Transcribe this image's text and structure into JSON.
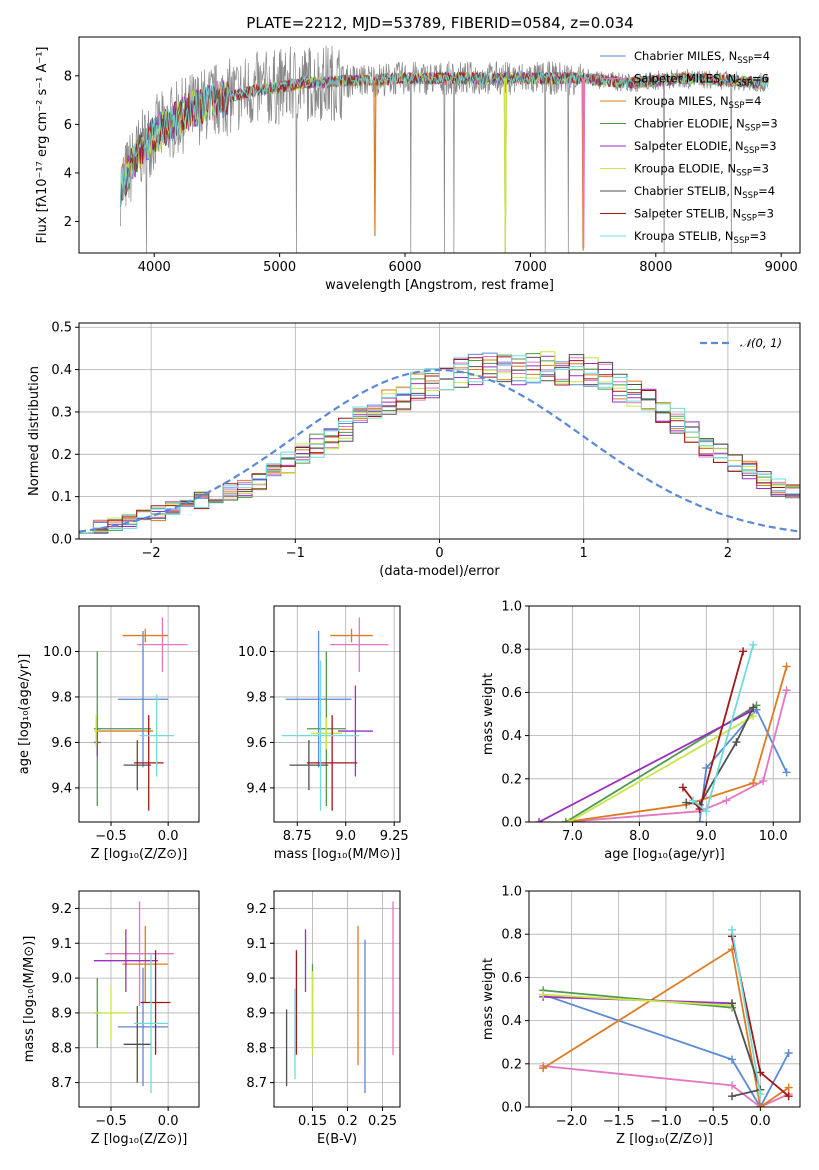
{
  "figure_title": "PLATE=2212, MJD=53789, FIBERID=0584, z=0.034",
  "colors": {
    "Chabrier MILES": "#5b8ad6",
    "Salpeter MILES": "#e377c2",
    "Kroupa MILES": "#dd7b22",
    "Chabrier ELODIE": "#4f9a4f",
    "Salpeter ELODIE": "#9b30c0",
    "Kroupa ELODIE": "#c8e64a",
    "Chabrier STELIB": "#505050",
    "Salpeter STELIB": "#a01818",
    "Kroupa STELIB": "#6fdcdc",
    "data": "#888888",
    "gaussian": "#5b8ad6"
  },
  "chart_data": [
    {
      "id": "spectrum",
      "type": "line",
      "title": "PLATE=2212, MJD=53789, FIBERID=0584, z=0.034",
      "xlabel": "wavelength [Angstrom, rest frame]",
      "ylabel": "Flux [fλ10⁻¹⁷ erg cm⁻² s⁻¹ A⁻¹]",
      "xlim": [
        3400,
        9150
      ],
      "ylim": [
        0.7,
        9.6
      ],
      "xticks": [
        4000,
        5000,
        6000,
        7000,
        8000,
        9000
      ],
      "yticks": [
        2,
        4,
        6,
        8
      ],
      "legend": [
        {
          "name": "Chabrier MILES",
          "nssp": "4"
        },
        {
          "name": "Salpeter MILES",
          "nssp": "6"
        },
        {
          "name": "Kroupa MILES",
          "nssp": "4"
        },
        {
          "name": "Chabrier ELODIE",
          "nssp": "3"
        },
        {
          "name": "Salpeter ELODIE",
          "nssp": "3"
        },
        {
          "name": "Kroupa ELODIE",
          "nssp": "3"
        },
        {
          "name": "Chabrier STELIB",
          "nssp": "4"
        },
        {
          "name": "Salpeter STELIB",
          "nssp": "3"
        },
        {
          "name": "Kroupa STELIB",
          "nssp": "3"
        }
      ],
      "legend_placement": "upper-right",
      "continuum": [
        [
          3730,
          3.4
        ],
        [
          3800,
          4.1
        ],
        [
          3900,
          5.0
        ],
        [
          4000,
          5.6
        ],
        [
          4150,
          6.1
        ],
        [
          4300,
          6.6
        ],
        [
          4500,
          7.0
        ],
        [
          4800,
          7.4
        ],
        [
          5200,
          7.7
        ],
        [
          5600,
          7.8
        ],
        [
          6000,
          7.9
        ],
        [
          6500,
          7.9
        ],
        [
          7000,
          7.9
        ],
        [
          7430,
          7.9
        ]
      ],
      "continuum_red": [
        [
          7400,
          7.8
        ],
        [
          7800,
          7.7
        ],
        [
          8200,
          7.9
        ],
        [
          8600,
          7.8
        ],
        [
          8900,
          7.7
        ]
      ],
      "model_dips": [
        {
          "series": "Kroupa MILES",
          "x": 5760,
          "y": 1.4
        },
        {
          "series": "Kroupa MILES",
          "x": 6800,
          "y": 0.7
        },
        {
          "series": "Kroupa MILES",
          "x": 7420,
          "y": 0.8
        },
        {
          "series": "Salpeter MILES",
          "x": 7425,
          "y": 0.9
        },
        {
          "series": "Kroupa ELODIE",
          "x": 6800,
          "y": 0.7
        }
      ]
    },
    {
      "id": "residuals",
      "type": "histogram",
      "xlabel": "(data-model)/error",
      "ylabel": "Normed distribution",
      "xlim": [
        -2.5,
        2.5
      ],
      "ylim": [
        0,
        0.51
      ],
      "xticks": [
        -2,
        -1,
        0,
        1,
        2
      ],
      "yticks": [
        0.0,
        0.1,
        0.2,
        0.3,
        0.4,
        0.5
      ],
      "grid": true,
      "legend": "𝒩(0, 1)",
      "legend_placement": "upper-right",
      "bin_width": 0.1,
      "bin_start": -2.5,
      "envelope": [
        0.03,
        0.03,
        0.035,
        0.04,
        0.05,
        0.06,
        0.07,
        0.08,
        0.09,
        0.1,
        0.11,
        0.12,
        0.14,
        0.16,
        0.18,
        0.2,
        0.22,
        0.24,
        0.26,
        0.28,
        0.3,
        0.32,
        0.34,
        0.36,
        0.37,
        0.38,
        0.39,
        0.4,
        0.4,
        0.41,
        0.4,
        0.4,
        0.41,
        0.4,
        0.4,
        0.39,
        0.38,
        0.36,
        0.34,
        0.32,
        0.3,
        0.28,
        0.25,
        0.22,
        0.2,
        0.18,
        0.16,
        0.14,
        0.12,
        0.11,
        0.1,
        0.09,
        0.08,
        0.07,
        0.06,
        0.05,
        0.04,
        0.035,
        0.03,
        0.025,
        0.02,
        0.02
      ]
    },
    {
      "id": "age-vs-Z",
      "type": "scatter",
      "xlabel": "Z [log₁₀(Z/Z⊙)]",
      "ylabel": "age  [log₁₀(age/yr)]",
      "xlim": [
        -0.78,
        0.27
      ],
      "ylim": [
        9.25,
        10.2
      ],
      "xticks": [
        -0.5,
        0.0
      ],
      "yticks": [
        9.4,
        9.6,
        9.8,
        10.0
      ],
      "grid": true,
      "points": [
        {
          "series": "Chabrier MILES",
          "x": -0.22,
          "y": 9.79,
          "xerr": 0.22,
          "yerr": 0.3
        },
        {
          "series": "Salpeter MILES",
          "x": -0.05,
          "y": 10.03,
          "xerr": 0.22,
          "yerr": 0.12
        },
        {
          "series": "Kroupa MILES",
          "x": -0.2,
          "y": 10.07,
          "xerr": 0.2,
          "yerr": 0.03
        },
        {
          "series": "Chabrier ELODIE",
          "x": -0.62,
          "y": 9.66,
          "xerr": 0.03,
          "yerr": 0.34
        },
        {
          "series": "Salpeter ELODIE",
          "x": -0.62,
          "y": 9.6,
          "xerr": 0.03,
          "yerr": 0.06
        },
        {
          "series": "Kroupa ELODIE",
          "x": -0.63,
          "y": 9.65,
          "xerr": 0.02,
          "yerr": 0.07
        },
        {
          "series": "Chabrier STELIB",
          "x": -0.27,
          "y": 9.5,
          "xerr": 0.12,
          "yerr": 0.11
        },
        {
          "series": "Salpeter STELIB",
          "x": -0.17,
          "y": 9.51,
          "xerr": 0.13,
          "yerr": 0.21
        },
        {
          "series": "Kroupa STELIB",
          "x": -0.1,
          "y": 9.63,
          "xerr": 0.15,
          "yerr": 0.18
        }
      ],
      "hlines": [
        {
          "series": "Chabrier ELODIE",
          "y": 9.66,
          "x0": -0.62,
          "x1": -0.15
        },
        {
          "series": "Kroupa MILES",
          "y": 9.65,
          "x0": -0.62,
          "x1": -0.13
        }
      ]
    },
    {
      "id": "age-vs-mass",
      "type": "scatter",
      "xlabel": "mass [log₁₀(M/M⊙)]",
      "ylabel": "",
      "xlim": [
        8.63,
        9.28
      ],
      "ylim": [
        9.25,
        10.2
      ],
      "xticks": [
        8.75,
        9.0,
        9.25
      ],
      "yticks": [
        9.4,
        9.6,
        9.8,
        10.0
      ],
      "grid": true,
      "points": [
        {
          "series": "Chabrier MILES",
          "x": 8.86,
          "y": 9.79,
          "xerr": 0.17,
          "yerr": 0.3
        },
        {
          "series": "Salpeter MILES",
          "x": 9.07,
          "y": 10.03,
          "xerr": 0.15,
          "yerr": 0.12
        },
        {
          "series": "Kroupa MILES",
          "x": 9.03,
          "y": 10.07,
          "xerr": 0.11,
          "yerr": 0.03
        },
        {
          "series": "Chabrier ELODIE",
          "x": 8.9,
          "y": 9.66,
          "xerr": 0.1,
          "yerr": 0.34
        },
        {
          "series": "Salpeter ELODIE",
          "x": 9.05,
          "y": 9.65,
          "xerr": 0.09,
          "yerr": 0.2
        },
        {
          "series": "Kroupa ELODIE",
          "x": 8.9,
          "y": 9.64,
          "xerr": 0.08,
          "yerr": 0.07
        },
        {
          "series": "Chabrier STELIB",
          "x": 8.81,
          "y": 9.5,
          "xerr": 0.1,
          "yerr": 0.11
        },
        {
          "series": "Salpeter STELIB",
          "x": 8.93,
          "y": 9.51,
          "xerr": 0.13,
          "yerr": 0.21
        },
        {
          "series": "Kroupa STELIB",
          "x": 8.87,
          "y": 9.63,
          "xerr": 0.2,
          "yerr": 0.33
        }
      ]
    },
    {
      "id": "weight-vs-age",
      "type": "line",
      "xlabel": "age  [log₁₀(age/yr)]",
      "ylabel": "mass weight",
      "xlim": [
        6.35,
        10.4
      ],
      "ylim": [
        0,
        1
      ],
      "xticks": [
        7,
        8,
        9,
        10
      ],
      "yticks": [
        0.0,
        0.2,
        0.4,
        0.6,
        0.8,
        1.0
      ],
      "grid": true,
      "series": [
        {
          "name": "Chabrier MILES",
          "x": [
            10.2,
            9.75,
            9.0,
            8.9
          ],
          "y": [
            0.23,
            0.52,
            0.25,
            0.0
          ]
        },
        {
          "name": "Salpeter MILES",
          "x": [
            10.2,
            9.85,
            9.3,
            8.9,
            6.9
          ],
          "y": [
            0.61,
            0.19,
            0.1,
            0.05,
            0.0
          ]
        },
        {
          "name": "Kroupa MILES",
          "x": [
            10.2,
            9.7,
            8.7,
            6.9
          ],
          "y": [
            0.72,
            0.18,
            0.08,
            0.0
          ]
        },
        {
          "name": "Chabrier ELODIE",
          "x": [
            9.75,
            6.9
          ],
          "y": [
            0.54,
            0.0
          ]
        },
        {
          "name": "Salpeter ELODIE",
          "x": [
            9.65,
            6.5
          ],
          "y": [
            0.51,
            0.0
          ]
        },
        {
          "name": "Kroupa ELODIE",
          "x": [
            9.7,
            6.95
          ],
          "y": [
            0.49,
            0.0
          ]
        },
        {
          "name": "Chabrier STELIB",
          "x": [
            9.7,
            9.45,
            8.9,
            8.7
          ],
          "y": [
            0.53,
            0.37,
            0.08,
            0.09
          ]
        },
        {
          "name": "Salpeter STELIB",
          "x": [
            9.55,
            8.9,
            8.65
          ],
          "y": [
            0.79,
            0.06,
            0.16
          ]
        },
        {
          "name": "Kroupa STELIB",
          "x": [
            9.7,
            9.0,
            8.8
          ],
          "y": [
            0.82,
            0.05,
            0.1
          ]
        }
      ]
    },
    {
      "id": "mass-vs-Z",
      "type": "scatter",
      "xlabel": "Z [log₁₀(Z/Z⊙)]",
      "ylabel": "mass [log₁₀(M/M⊙)]",
      "xlim": [
        -0.78,
        0.27
      ],
      "ylim": [
        8.63,
        9.25
      ],
      "xticks": [
        -0.5,
        0.0
      ],
      "yticks": [
        8.7,
        8.8,
        8.9,
        9.0,
        9.1,
        9.2
      ],
      "grid": true,
      "points": [
        {
          "series": "Chabrier MILES",
          "x": -0.22,
          "y": 8.86,
          "xerr": 0.22,
          "yerr": 0.17
        },
        {
          "series": "Salpeter MILES",
          "x": -0.25,
          "y": 9.07,
          "xerr": 0.3,
          "yerr": 0.15
        },
        {
          "series": "Kroupa MILES",
          "x": -0.2,
          "y": 9.04,
          "xerr": 0.2,
          "yerr": 0.11
        },
        {
          "series": "Chabrier ELODIE",
          "x": -0.62,
          "y": 8.9,
          "xerr": 0.03,
          "yerr": 0.1
        },
        {
          "series": "Salpeter ELODIE",
          "x": -0.37,
          "y": 9.05,
          "xerr": 0.28,
          "yerr": 0.09
        },
        {
          "series": "Kroupa ELODIE",
          "x": -0.5,
          "y": 8.9,
          "xerr": 0.15,
          "yerr": 0.08
        },
        {
          "series": "Chabrier STELIB",
          "x": -0.27,
          "y": 8.81,
          "xerr": 0.12,
          "yerr": 0.11
        },
        {
          "series": "Salpeter STELIB",
          "x": -0.11,
          "y": 8.93,
          "xerr": 0.13,
          "yerr": 0.15
        },
        {
          "series": "Kroupa STELIB",
          "x": -0.15,
          "y": 8.87,
          "xerr": 0.15,
          "yerr": 0.2
        }
      ]
    },
    {
      "id": "mass-vs-ebv",
      "type": "scatter",
      "xlabel": "E(B-V)",
      "ylabel": "",
      "xlim": [
        0.095,
        0.275
      ],
      "ylim": [
        8.63,
        9.25
      ],
      "xticks": [
        0.15,
        0.2,
        0.25
      ],
      "yticks": [
        8.7,
        8.8,
        8.9,
        9.0,
        9.1,
        9.2
      ],
      "grid": true,
      "points": [
        {
          "series": "Chabrier MILES",
          "x": 0.225,
          "y": 8.89,
          "xerr": 0,
          "yerr": 0.22
        },
        {
          "series": "Salpeter MILES",
          "x": 0.265,
          "y": 9.0,
          "xerr": 0,
          "yerr": 0.22
        },
        {
          "series": "Kroupa MILES",
          "x": 0.215,
          "y": 8.95,
          "xerr": 0,
          "yerr": 0.2
        },
        {
          "series": "Chabrier ELODIE",
          "x": 0.15,
          "y": 8.92,
          "xerr": 0,
          "yerr": 0.12
        },
        {
          "series": "Salpeter ELODIE",
          "x": 0.14,
          "y": 9.05,
          "xerr": 0,
          "yerr": 0.09
        },
        {
          "series": "Kroupa ELODIE",
          "x": 0.15,
          "y": 8.9,
          "xerr": 0,
          "yerr": 0.12
        },
        {
          "series": "Chabrier STELIB",
          "x": 0.113,
          "y": 8.8,
          "xerr": 0,
          "yerr": 0.11
        },
        {
          "series": "Salpeter STELIB",
          "x": 0.127,
          "y": 8.93,
          "xerr": 0,
          "yerr": 0.15
        },
        {
          "series": "Kroupa STELIB",
          "x": 0.125,
          "y": 8.84,
          "xerr": 0,
          "yerr": 0.13
        }
      ]
    },
    {
      "id": "weight-vs-Z",
      "type": "line",
      "xlabel": "Z [log₁₀(Z/Z⊙)]",
      "ylabel": "mass weight",
      "xlim": [
        -2.45,
        0.42
      ],
      "ylim": [
        0,
        1
      ],
      "xticks": [
        -2.0,
        -1.5,
        -1.0,
        -0.5,
        0.0
      ],
      "yticks": [
        0.0,
        0.2,
        0.4,
        0.6,
        0.8,
        1.0
      ],
      "grid": true,
      "series": [
        {
          "name": "Chabrier MILES",
          "x": [
            0.3,
            0.0,
            -0.3,
            -2.3
          ],
          "y": [
            0.25,
            0.0,
            0.22,
            0.52
          ]
        },
        {
          "name": "Salpeter MILES",
          "x": [
            0.3,
            0.0,
            -0.3,
            -2.3
          ],
          "y": [
            0.06,
            0.0,
            0.1,
            0.19
          ]
        },
        {
          "name": "Kroupa MILES",
          "x": [
            0.3,
            0.0,
            -0.3,
            -2.3
          ],
          "y": [
            0.09,
            0.0,
            0.73,
            0.18
          ]
        },
        {
          "name": "Chabrier ELODIE",
          "x": [
            -0.3,
            -2.3
          ],
          "y": [
            0.46,
            0.54
          ]
        },
        {
          "name": "Salpeter ELODIE",
          "x": [
            -0.3,
            -2.3
          ],
          "y": [
            0.48,
            0.51
          ]
        },
        {
          "name": "Kroupa ELODIE",
          "x": [
            -0.3,
            -2.3
          ],
          "y": [
            0.47,
            0.52
          ]
        },
        {
          "name": "Chabrier STELIB",
          "x": [
            -0.3,
            0.0,
            -0.3
          ],
          "y": [
            0.48,
            0.08,
            0.05
          ]
        },
        {
          "name": "Salpeter STELIB",
          "x": [
            -0.3,
            0.0,
            0.3
          ],
          "y": [
            0.79,
            0.16,
            0.05
          ]
        },
        {
          "name": "Kroupa STELIB",
          "x": [
            -0.3,
            0.0
          ],
          "y": [
            0.82,
            0.06
          ]
        }
      ]
    }
  ]
}
